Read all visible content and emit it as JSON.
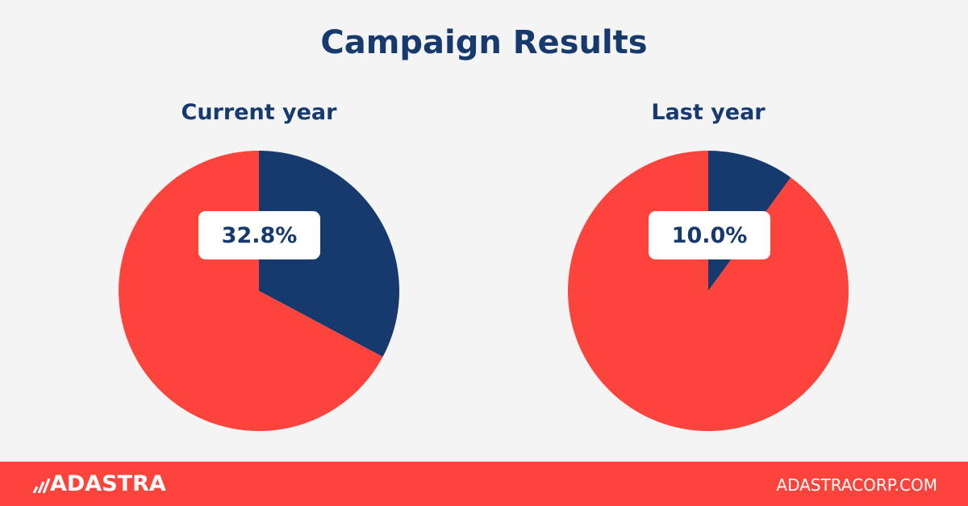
{
  "title": "Campaign Results",
  "colors": {
    "highlight": "#173a6e",
    "remainder": "#fc443d",
    "background": "#f4f4f4"
  },
  "chart_data": [
    {
      "type": "pie",
      "title": "Current year",
      "values": [
        32.8,
        67.2
      ],
      "label": "32.8%"
    },
    {
      "type": "pie",
      "title": "Last year",
      "values": [
        10.0,
        90.0
      ],
      "label": "10.0%"
    }
  ],
  "footer": {
    "logo": "ADASTRA",
    "url": "ADASTRACORP.COM"
  }
}
